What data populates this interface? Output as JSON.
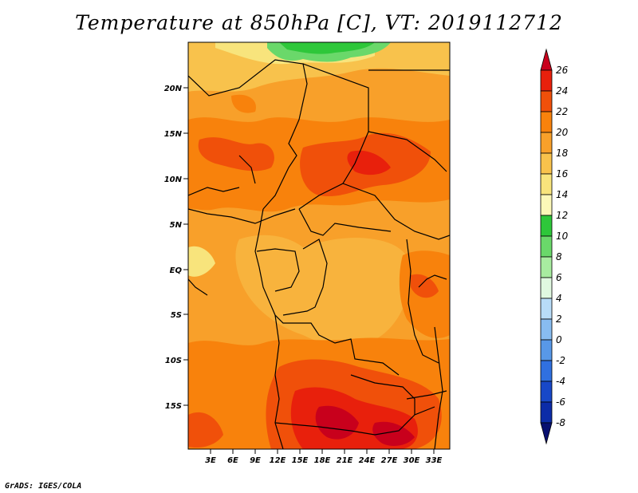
{
  "title": "Temperature at 850hPa [C], VT: 2019112712",
  "footer": "GrADS: IGES/COLA",
  "lat_labels": [
    "20N",
    "15N",
    "10N",
    "5N",
    "EQ",
    "5S",
    "10S",
    "15S"
  ],
  "lon_labels": [
    "3E",
    "6E",
    "9E",
    "12E",
    "15E",
    "18E",
    "21E",
    "24E",
    "27E",
    "30E",
    "33E"
  ],
  "colorbar": {
    "labels": [
      "26",
      "24",
      "22",
      "20",
      "18",
      "16",
      "14",
      "12",
      "10",
      "8",
      "6",
      "4",
      "2",
      "0",
      "-2",
      "-4",
      "-6",
      "-8"
    ],
    "colors": [
      "#c8001c",
      "#e8200c",
      "#f0500a",
      "#f8820c",
      "#f8a02a",
      "#f8c24c",
      "#f8e47c",
      "#fcf8b8",
      "#2ec73a",
      "#6ad86a",
      "#a8ecA0",
      "#e0f8e0",
      "#b8dcf8",
      "#88bcf0",
      "#5898e8",
      "#3070e0",
      "#1848c8",
      "#0c2ca8",
      "#081070"
    ]
  }
}
